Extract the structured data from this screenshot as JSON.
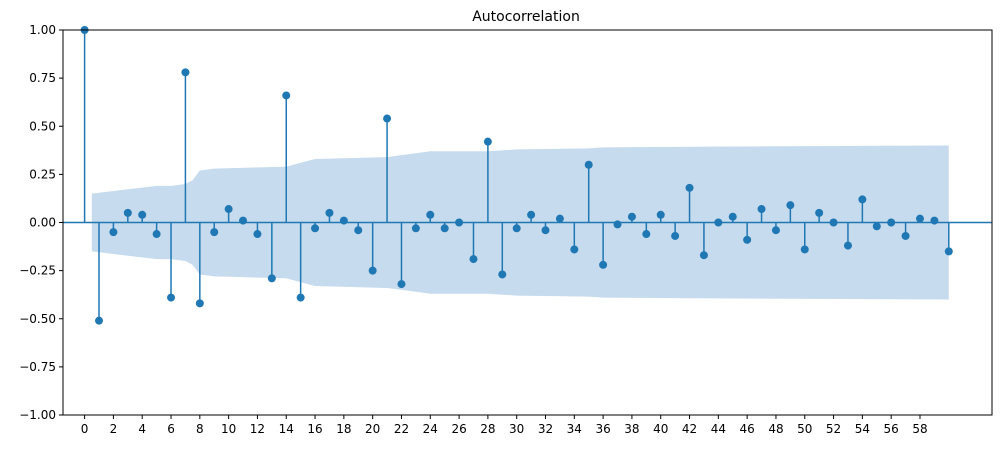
{
  "chart_data": {
    "type": "stem",
    "title": "Autocorrelation",
    "xlabel": "",
    "ylabel": "",
    "xlim": [
      -1.5,
      63
    ],
    "ylim": [
      -1.0,
      1.0
    ],
    "xticks": [
      0,
      2,
      4,
      6,
      8,
      10,
      12,
      14,
      16,
      18,
      20,
      22,
      24,
      26,
      28,
      30,
      32,
      34,
      36,
      38,
      40,
      42,
      44,
      46,
      48,
      50,
      52,
      54,
      56,
      58
    ],
    "yticks": [
      "-1.00",
      "-0.75",
      "-0.50",
      "-0.25",
      "0.00",
      "0.25",
      "0.50",
      "0.75",
      "1.00"
    ],
    "grid": false,
    "colors": {
      "stem": "#1f77b4",
      "confidence_band": "#c6dbed"
    },
    "lags": [
      0,
      1,
      2,
      3,
      4,
      5,
      6,
      7,
      8,
      9,
      10,
      11,
      12,
      13,
      14,
      15,
      16,
      17,
      18,
      19,
      20,
      21,
      22,
      23,
      24,
      25,
      26,
      27,
      28,
      29,
      30,
      31,
      32,
      33,
      34,
      35,
      36,
      37,
      38,
      39,
      40,
      41,
      42,
      43,
      44,
      45,
      46,
      47,
      48,
      49,
      50,
      51,
      52,
      53,
      54,
      55,
      56,
      57,
      58,
      59,
      60
    ],
    "values": [
      1.0,
      -0.51,
      -0.05,
      0.05,
      0.04,
      -0.06,
      -0.39,
      0.78,
      -0.42,
      -0.05,
      0.07,
      0.01,
      -0.06,
      -0.29,
      0.66,
      -0.39,
      -0.03,
      0.05,
      0.01,
      -0.04,
      -0.25,
      0.54,
      -0.32,
      -0.03,
      0.04,
      -0.03,
      0.0,
      -0.19,
      0.42,
      -0.27,
      -0.03,
      0.04,
      -0.04,
      0.02,
      -0.14,
      0.3,
      -0.22,
      -0.01,
      0.03,
      -0.06,
      0.04,
      -0.07,
      0.18,
      -0.17,
      0.0,
      0.03,
      -0.09,
      0.07,
      -0.04,
      0.09,
      -0.14,
      0.05,
      0.0,
      -0.12,
      0.12,
      -0.02,
      0.0,
      -0.07,
      0.02,
      0.01,
      -0.15
    ],
    "confidence_band": {
      "lags": [
        0.5,
        5,
        6,
        7,
        7.5,
        8,
        9,
        14,
        15,
        16,
        21,
        22,
        23,
        24,
        28,
        30,
        35,
        36,
        45,
        60
      ],
      "upper": [
        0.15,
        0.19,
        0.19,
        0.2,
        0.22,
        0.27,
        0.28,
        0.29,
        0.31,
        0.33,
        0.34,
        0.35,
        0.36,
        0.37,
        0.37,
        0.38,
        0.385,
        0.39,
        0.395,
        0.4
      ]
    }
  }
}
